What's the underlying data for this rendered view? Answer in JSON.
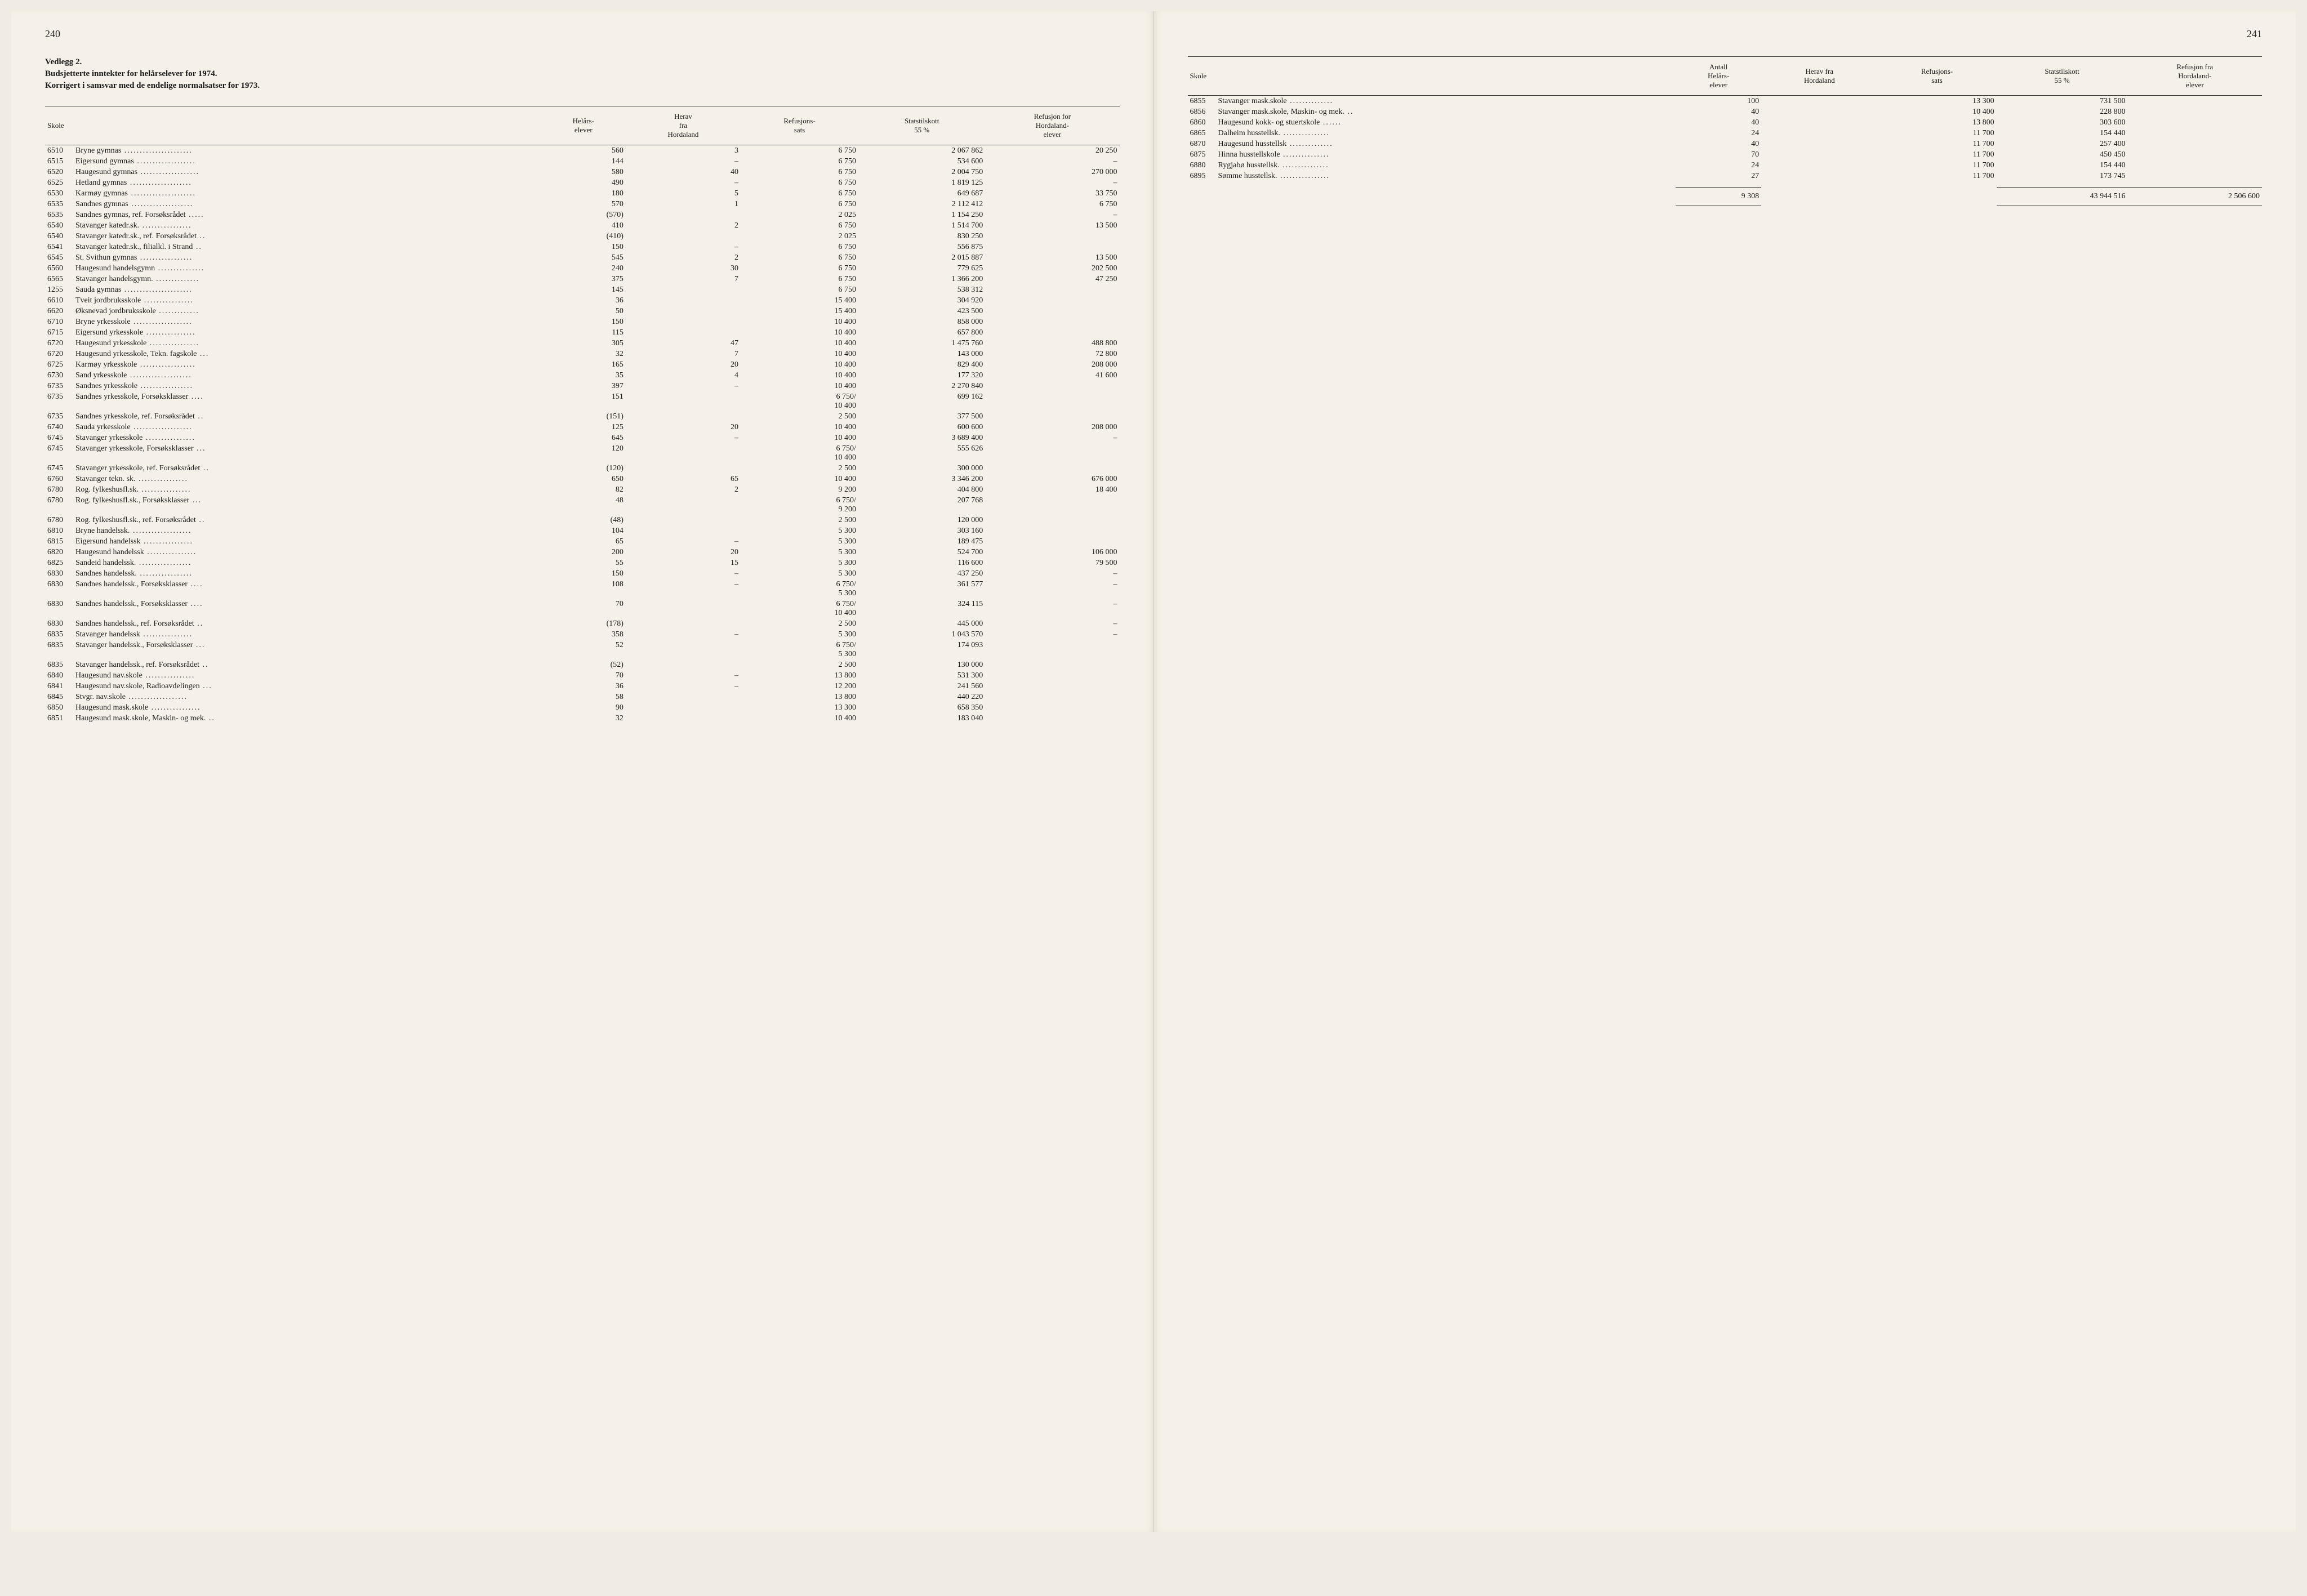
{
  "leftPage": {
    "pageNumber": "240",
    "heading1": "Vedlegg 2.",
    "heading2": "Budsjetterte inntekter for helårselever for 1974.",
    "heading3": "Korrigert i samsvar med de endelige normalsatser for 1973.",
    "columns": [
      "Skole",
      "Helårs-\nelever",
      "Herav\nfra\nHordaland",
      "Refusjons-\nsats",
      "Statstilskott\n55 %",
      "Refusjon for\nHordaland-\nelever"
    ],
    "rows": [
      {
        "code": "6510",
        "name": "Bryne gymnas",
        "c1": "560",
        "c2": "3",
        "c3": "6 750",
        "c4": "2 067 862",
        "c5": "20 250"
      },
      {
        "code": "6515",
        "name": "Eigersund gymnas",
        "c1": "144",
        "c2": "–",
        "c3": "6 750",
        "c4": "534 600",
        "c5": "–"
      },
      {
        "code": "6520",
        "name": "Haugesund gymnas",
        "c1": "580",
        "c2": "40",
        "c3": "6 750",
        "c4": "2 004 750",
        "c5": "270 000"
      },
      {
        "code": "6525",
        "name": "Hetland gymnas",
        "c1": "490",
        "c2": "–",
        "c3": "6 750",
        "c4": "1 819 125",
        "c5": "–"
      },
      {
        "code": "6530",
        "name": "Karmøy gymnas",
        "c1": "180",
        "c2": "5",
        "c3": "6 750",
        "c4": "649 687",
        "c5": "33 750"
      },
      {
        "code": "6535",
        "name": "Sandnes gymnas",
        "c1": "570",
        "c2": "1",
        "c3": "6 750",
        "c4": "2 112 412",
        "c5": "6 750"
      },
      {
        "code": "6535",
        "name": "Sandnes gymnas, ref. Forsøksrådet",
        "c1": "(570)",
        "c2": "",
        "c3": "2 025",
        "c4": "1 154 250",
        "c5": "–"
      },
      {
        "code": "6540",
        "name": "Stavanger katedr.sk.",
        "c1": "410",
        "c2": "2",
        "c3": "6 750",
        "c4": "1 514 700",
        "c5": "13 500"
      },
      {
        "code": "6540",
        "name": "Stavanger katedr.sk., ref. Forsøksrådet",
        "c1": "(410)",
        "c2": "",
        "c3": "2 025",
        "c4": "830 250",
        "c5": ""
      },
      {
        "code": "6541",
        "name": "Stavanger katedr.sk., filialkl. i Strand",
        "c1": "150",
        "c2": "–",
        "c3": "6 750",
        "c4": "556 875",
        "c5": ""
      },
      {
        "code": "6545",
        "name": "St. Svithun gymnas",
        "c1": "545",
        "c2": "2",
        "c3": "6 750",
        "c4": "2 015 887",
        "c5": "13 500"
      },
      {
        "code": "6560",
        "name": "Haugesund handelsgymn",
        "c1": "240",
        "c2": "30",
        "c3": "6 750",
        "c4": "779 625",
        "c5": "202 500"
      },
      {
        "code": "6565",
        "name": "Stavanger handelsgymn.",
        "c1": "375",
        "c2": "7",
        "c3": "6 750",
        "c4": "1 366 200",
        "c5": "47 250"
      },
      {
        "code": "1255",
        "name": "Sauda gymnas",
        "c1": "145",
        "c2": "",
        "c3": "6 750",
        "c4": "538 312",
        "c5": ""
      },
      {
        "code": "6610",
        "name": "Tveit jordbruksskole",
        "c1": "36",
        "c2": "",
        "c3": "15 400",
        "c4": "304 920",
        "c5": ""
      },
      {
        "code": "6620",
        "name": "Øksnevad jordbruksskole",
        "c1": "50",
        "c2": "",
        "c3": "15 400",
        "c4": "423 500",
        "c5": ""
      },
      {
        "code": "6710",
        "name": "Bryne yrkesskole",
        "c1": "150",
        "c2": "",
        "c3": "10 400",
        "c4": "858 000",
        "c5": ""
      },
      {
        "code": "6715",
        "name": "Eigersund yrkesskole",
        "c1": "115",
        "c2": "",
        "c3": "10 400",
        "c4": "657 800",
        "c5": ""
      },
      {
        "code": "6720",
        "name": "Haugesund yrkesskole",
        "c1": "305",
        "c2": "47",
        "c3": "10 400",
        "c4": "1 475 760",
        "c5": "488 800"
      },
      {
        "code": "6720",
        "name": "Haugesund yrkesskole, Tekn. fagskole",
        "c1": "32",
        "c2": "7",
        "c3": "10 400",
        "c4": "143 000",
        "c5": "72 800"
      },
      {
        "code": "6725",
        "name": "Karmøy yrkesskole",
        "c1": "165",
        "c2": "20",
        "c3": "10 400",
        "c4": "829 400",
        "c5": "208 000"
      },
      {
        "code": "6730",
        "name": "Sand yrkesskole",
        "c1": "35",
        "c2": "4",
        "c3": "10 400",
        "c4": "177 320",
        "c5": "41 600"
      },
      {
        "code": "6735",
        "name": "Sandnes yrkesskole",
        "c1": "397",
        "c2": "–",
        "c3": "10 400",
        "c4": "2 270 840",
        "c5": ""
      },
      {
        "code": "6735",
        "name": "Sandnes yrkesskole, Forsøksklasser",
        "c1": "151",
        "c2": "",
        "c3": "6 750/\n10 400",
        "c4": "699 162",
        "c5": ""
      },
      {
        "code": "6735",
        "name": "Sandnes yrkesskole, ref. Forsøksrådet",
        "c1": "(151)",
        "c2": "",
        "c3": "2 500",
        "c4": "377 500",
        "c5": ""
      },
      {
        "code": "6740",
        "name": "Sauda yrkesskole",
        "c1": "125",
        "c2": "20",
        "c3": "10 400",
        "c4": "600 600",
        "c5": "208 000"
      },
      {
        "code": "6745",
        "name": "Stavanger yrkesskole",
        "c1": "645",
        "c2": "–",
        "c3": "10 400",
        "c4": "3 689 400",
        "c5": "–"
      },
      {
        "code": "6745",
        "name": "Stavanger yrkesskole, Forsøksklasser",
        "c1": "120",
        "c2": "",
        "c3": "6 750/\n10 400",
        "c4": "555 626",
        "c5": ""
      },
      {
        "code": "6745",
        "name": "Stavanger yrkesskole, ref. Forsøksrådet",
        "c1": "(120)",
        "c2": "",
        "c3": "2 500",
        "c4": "300 000",
        "c5": ""
      },
      {
        "code": "6760",
        "name": "Stavanger tekn. sk.",
        "c1": "650",
        "c2": "65",
        "c3": "10 400",
        "c4": "3 346 200",
        "c5": "676 000"
      },
      {
        "code": "6780",
        "name": "Rog. fylkeshusfl.sk.",
        "c1": "82",
        "c2": "2",
        "c3": "9 200",
        "c4": "404 800",
        "c5": "18 400"
      },
      {
        "code": "6780",
        "name": "Rog. fylkeshusfl.sk., Forsøksklasser",
        "c1": "48",
        "c2": "",
        "c3": "6 750/\n9 200",
        "c4": "207 768",
        "c5": ""
      },
      {
        "code": "6780",
        "name": "Rog. fylkeshusfl.sk., ref. Forsøksrådet",
        "c1": "(48)",
        "c2": "",
        "c3": "2 500",
        "c4": "120 000",
        "c5": ""
      },
      {
        "code": "6810",
        "name": "Bryne handelssk.",
        "c1": "104",
        "c2": "",
        "c3": "5 300",
        "c4": "303 160",
        "c5": ""
      },
      {
        "code": "6815",
        "name": "Eigersund handelssk",
        "c1": "65",
        "c2": "–",
        "c3": "5 300",
        "c4": "189 475",
        "c5": ""
      },
      {
        "code": "6820",
        "name": "Haugesund handelssk",
        "c1": "200",
        "c2": "20",
        "c3": "5 300",
        "c4": "524 700",
        "c5": "106 000"
      },
      {
        "code": "6825",
        "name": "Sandeid handelssk.",
        "c1": "55",
        "c2": "15",
        "c3": "5 300",
        "c4": "116 600",
        "c5": "79 500"
      },
      {
        "code": "6830",
        "name": "Sandnes handelssk.",
        "c1": "150",
        "c2": "–",
        "c3": "5 300",
        "c4": "437 250",
        "c5": "–"
      },
      {
        "code": "6830",
        "name": "Sandnes handelssk., Forsøksklasser",
        "c1": "108",
        "c2": "–",
        "c3": "6 750/\n5 300",
        "c4": "361 577",
        "c5": "–"
      },
      {
        "code": "6830",
        "name": "Sandnes handelssk., Forsøksklasser",
        "c1": "70",
        "c2": "",
        "c3": "6 750/\n10 400",
        "c4": "324 115",
        "c5": "–"
      },
      {
        "code": "6830",
        "name": "Sandnes handelssk., ref. Forsøksrådet",
        "c1": "(178)",
        "c2": "",
        "c3": "2 500",
        "c4": "445 000",
        "c5": "–"
      },
      {
        "code": "6835",
        "name": "Stavanger handelssk",
        "c1": "358",
        "c2": "–",
        "c3": "5 300",
        "c4": "1 043 570",
        "c5": "–"
      },
      {
        "code": "6835",
        "name": "Stavanger handelssk., Forsøksklasser",
        "c1": "52",
        "c2": "",
        "c3": "6 750/\n5 300",
        "c4": "174 093",
        "c5": ""
      },
      {
        "code": "6835",
        "name": "Stavanger handelssk., ref. Forsøksrådet",
        "c1": "(52)",
        "c2": "",
        "c3": "2 500",
        "c4": "130 000",
        "c5": ""
      },
      {
        "code": "6840",
        "name": "Haugesund nav.skole",
        "c1": "70",
        "c2": "–",
        "c3": "13 800",
        "c4": "531 300",
        "c5": ""
      },
      {
        "code": "6841",
        "name": "Haugesund nav.skole, Radioavdelingen",
        "c1": "36",
        "c2": "–",
        "c3": "12 200",
        "c4": "241 560",
        "c5": ""
      },
      {
        "code": "6845",
        "name": "Stvgr. nav.skole",
        "c1": "58",
        "c2": "",
        "c3": "13 800",
        "c4": "440 220",
        "c5": ""
      },
      {
        "code": "6850",
        "name": "Haugesund mask.skole",
        "c1": "90",
        "c2": "",
        "c3": "13 300",
        "c4": "658 350",
        "c5": ""
      },
      {
        "code": "6851",
        "name": "Haugesund mask.skole, Maskin- og mek.",
        "c1": "32",
        "c2": "",
        "c3": "10 400",
        "c4": "183 040",
        "c5": ""
      }
    ]
  },
  "rightPage": {
    "pageNumber": "241",
    "columns": [
      "Skole",
      "Antall\nHelårs-\nelever",
      "Herav fra\nHordaland",
      "Refusjons-\nsats",
      "Statstilskott\n55 %",
      "Refusjon fra\nHordaland-\nelever"
    ],
    "rows": [
      {
        "code": "6855",
        "name": "Stavanger mask.skole",
        "c1": "100",
        "c2": "",
        "c3": "13 300",
        "c4": "731 500",
        "c5": ""
      },
      {
        "code": "6856",
        "name": "Stavanger mask.skole, Maskin- og mek.",
        "c1": "40",
        "c2": "",
        "c3": "10 400",
        "c4": "228 800",
        "c5": ""
      },
      {
        "code": "6860",
        "name": "Haugesund kokk- og stuertskole",
        "c1": "40",
        "c2": "",
        "c3": "13 800",
        "c4": "303 600",
        "c5": ""
      },
      {
        "code": "6865",
        "name": "Dalheim husstellsk.",
        "c1": "24",
        "c2": "",
        "c3": "11 700",
        "c4": "154 440",
        "c5": ""
      },
      {
        "code": "6870",
        "name": "Haugesund husstellsk",
        "c1": "40",
        "c2": "",
        "c3": "11 700",
        "c4": "257 400",
        "c5": ""
      },
      {
        "code": "6875",
        "name": "Hinna husstellskole",
        "c1": "70",
        "c2": "",
        "c3": "11 700",
        "c4": "450 450",
        "c5": ""
      },
      {
        "code": "6880",
        "name": "Rygjabø husstellsk.",
        "c1": "24",
        "c2": "",
        "c3": "11 700",
        "c4": "154 440",
        "c5": ""
      },
      {
        "code": "6895",
        "name": "Sømme husstellsk.",
        "c1": "27",
        "c2": "",
        "c3": "11 700",
        "c4": "173 745",
        "c5": ""
      }
    ],
    "totals": {
      "c1": "9 308",
      "c4": "43 944 516",
      "c5": "2 506 600"
    }
  }
}
